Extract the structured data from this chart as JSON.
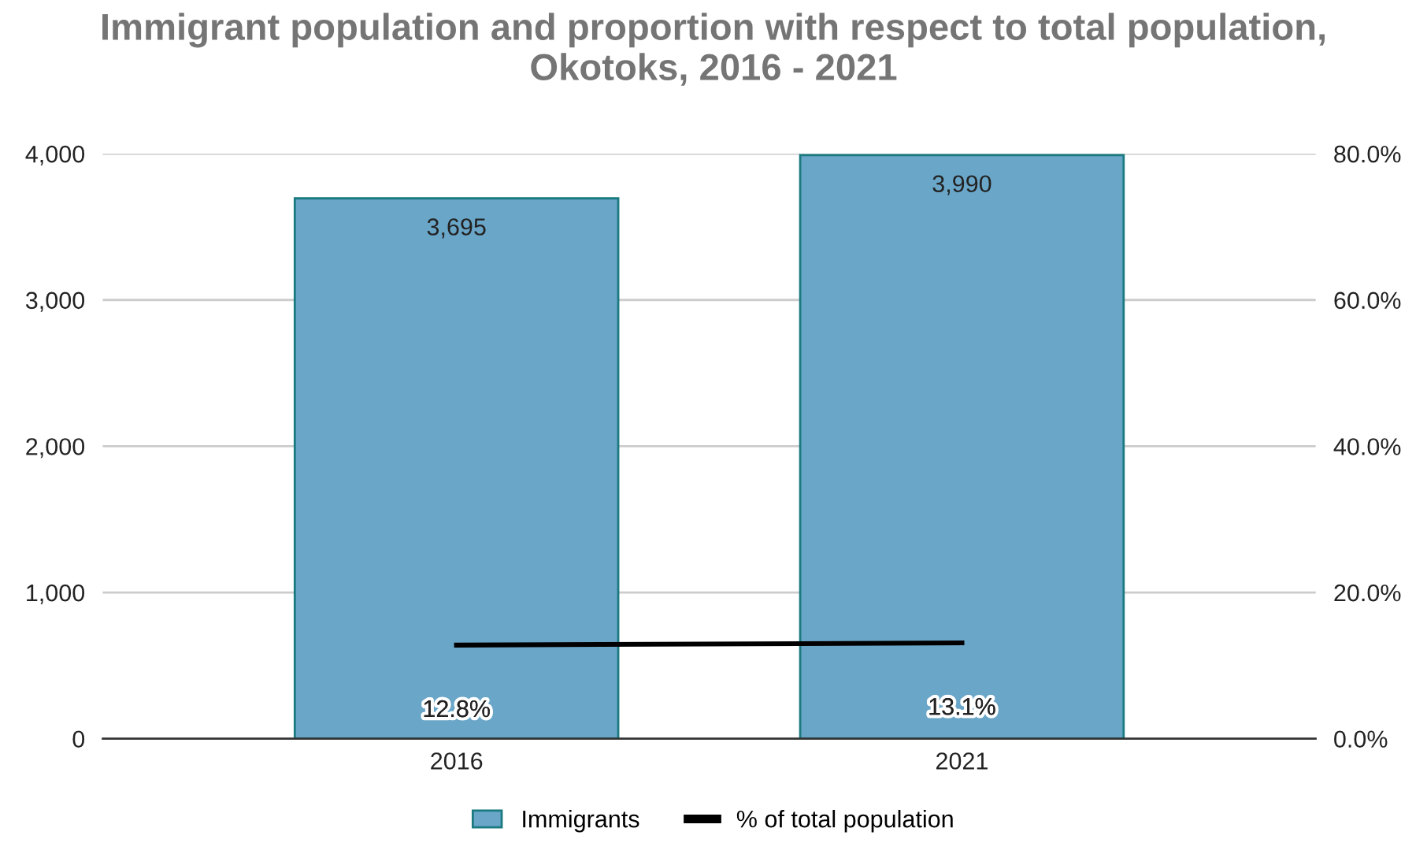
{
  "chart_data": {
    "type": "bar",
    "title": "Immigrant population and proportion with respect to total population,\nOkotoks, 2016 - 2021",
    "categories": [
      "2016",
      "2021"
    ],
    "series": [
      {
        "name": "Immigrants",
        "color": "#6aa6c8",
        "values": [
          3695,
          3990
        ],
        "value_labels": [
          "3,695",
          "3,990"
        ]
      },
      {
        "name": "% of total population",
        "type": "line",
        "axis": "y2",
        "color": "#000000",
        "values": [
          12.8,
          13.1
        ],
        "value_labels": [
          "12.8%",
          "13.1%"
        ]
      }
    ],
    "ylim": [
      0,
      4000
    ],
    "yticks": [
      {
        "value": 0,
        "label": "0"
      },
      {
        "value": 1000,
        "label": "1,000"
      },
      {
        "value": 2000,
        "label": "2,000"
      },
      {
        "value": 3000,
        "label": "3,000"
      },
      {
        "value": 4000,
        "label": "4,000"
      }
    ],
    "y2lim": [
      0,
      80
    ],
    "y2ticks": [
      {
        "value": 0,
        "label": "0.0%"
      },
      {
        "value": 20,
        "label": "20.0%"
      },
      {
        "value": 40,
        "label": "40.0%"
      },
      {
        "value": 60,
        "label": "60.0%"
      },
      {
        "value": 80,
        "label": "80.0%"
      }
    ],
    "grid": "y",
    "legend": "bottom"
  }
}
